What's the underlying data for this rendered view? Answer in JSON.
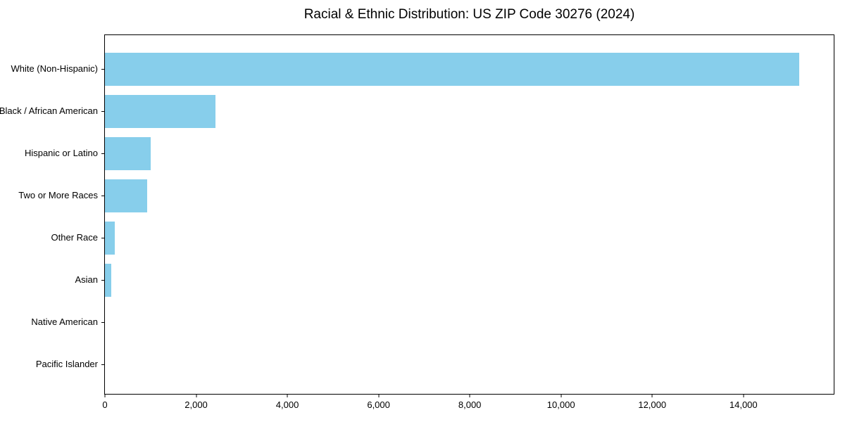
{
  "chart_data": {
    "type": "bar",
    "orientation": "horizontal",
    "title": "Racial & Ethnic Distribution: US ZIP Code 30276 (2024)",
    "categories": [
      "White (Non-Hispanic)",
      "Black / African American",
      "Hispanic or Latino",
      "Two or More Races",
      "Other Race",
      "Asian",
      "Native American",
      "Pacific Islander"
    ],
    "values": [
      15220,
      2425,
      1010,
      920,
      220,
      140,
      0,
      0
    ],
    "xlabel": "",
    "ylabel": "",
    "xlim": [
      0,
      15980
    ],
    "x_ticks": [
      0,
      2000,
      4000,
      6000,
      8000,
      10000,
      12000,
      14000
    ],
    "x_tick_labels": [
      "0",
      "2,000",
      "4,000",
      "6,000",
      "8,000",
      "10,000",
      "12,000",
      "14,000"
    ],
    "bar_color": "#87CEEB",
    "grid": false,
    "legend": "none",
    "plot_border": "#000000"
  }
}
